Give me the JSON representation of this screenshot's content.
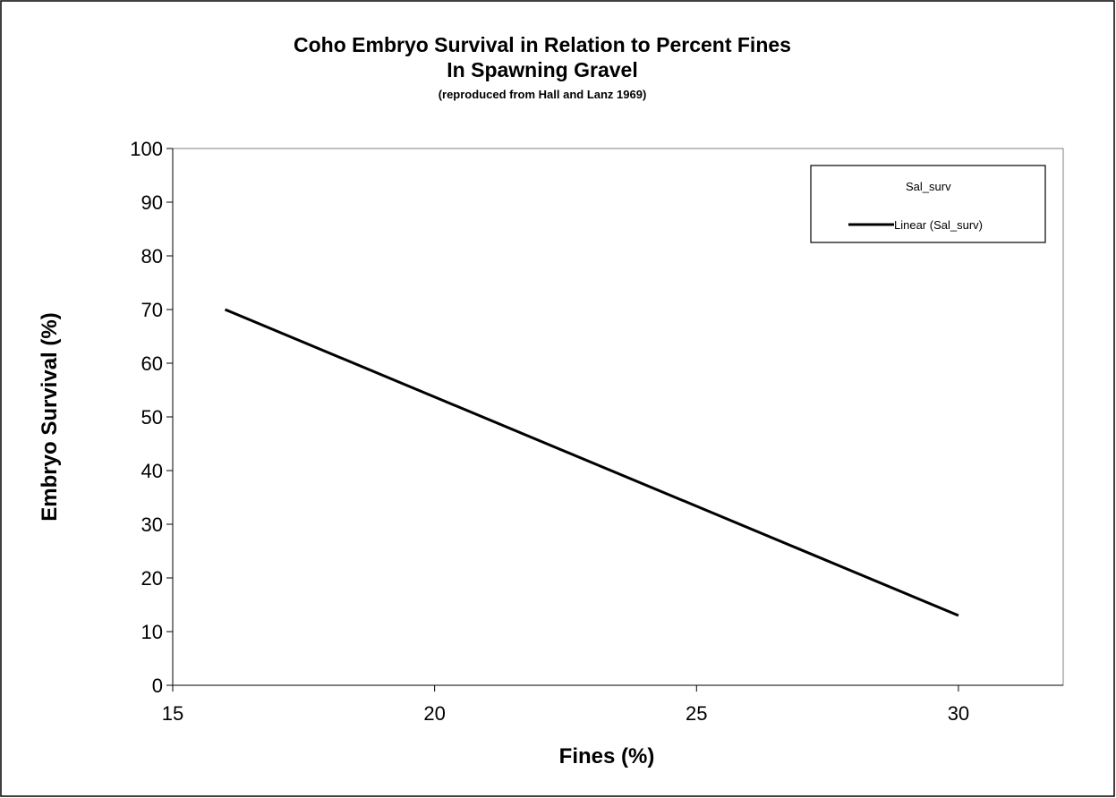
{
  "chart_data": {
    "type": "line",
    "title_line1": "Coho Embryo Survival in Relation to Percent Fines",
    "title_line2": "In Spawning Gravel",
    "subtitle": "(reproduced from Hall and Lanz 1969)",
    "xlabel": "Fines (%)",
    "ylabel": "Embryo Survival (%)",
    "xlim": [
      15,
      32
    ],
    "ylim": [
      0,
      100
    ],
    "x_ticks": [
      15,
      20,
      25,
      30
    ],
    "y_ticks": [
      0,
      10,
      20,
      30,
      40,
      50,
      60,
      70,
      80,
      90,
      100
    ],
    "grid": false,
    "legend_position": "top-right",
    "legend": {
      "entries": [
        "Sal_surv",
        "Linear (Sal_surv)"
      ]
    },
    "series": [
      {
        "name": "Linear (Sal_surv)",
        "x": [
          16,
          30
        ],
        "y": [
          70,
          13
        ],
        "color": "#000000"
      }
    ]
  }
}
